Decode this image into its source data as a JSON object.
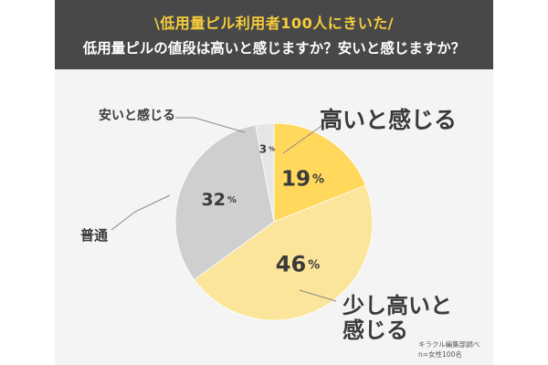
{
  "header": {
    "line1": "\\低用量ピル利用者100人にきいた/",
    "line2": "低用量ピルの値段は高いと感じますか？安いと感じますか？"
  },
  "credit": {
    "line1": "キラクル編集部調べ",
    "line2": "n=女性100名"
  },
  "colors": {
    "header_bg": "#484848",
    "header_accent": "#f6ce3c",
    "high": "#ffd85c",
    "slightly_high": "#fbe59a",
    "normal": "#cfcfcf",
    "cheap": "#e6e6e6",
    "text": "#3a3a3a"
  },
  "chart_data": {
    "type": "pie",
    "unit": "%",
    "slices": [
      {
        "label": "高いと感じる",
        "value": 19,
        "color": "#ffd85c"
      },
      {
        "label": "少し高いと感じる",
        "value": 46,
        "color": "#fbe59a"
      },
      {
        "label": "普通",
        "value": 32,
        "color": "#cfcfcf"
      },
      {
        "label": "安いと感じる",
        "value": 3,
        "color": "#e6e6e6"
      }
    ]
  }
}
